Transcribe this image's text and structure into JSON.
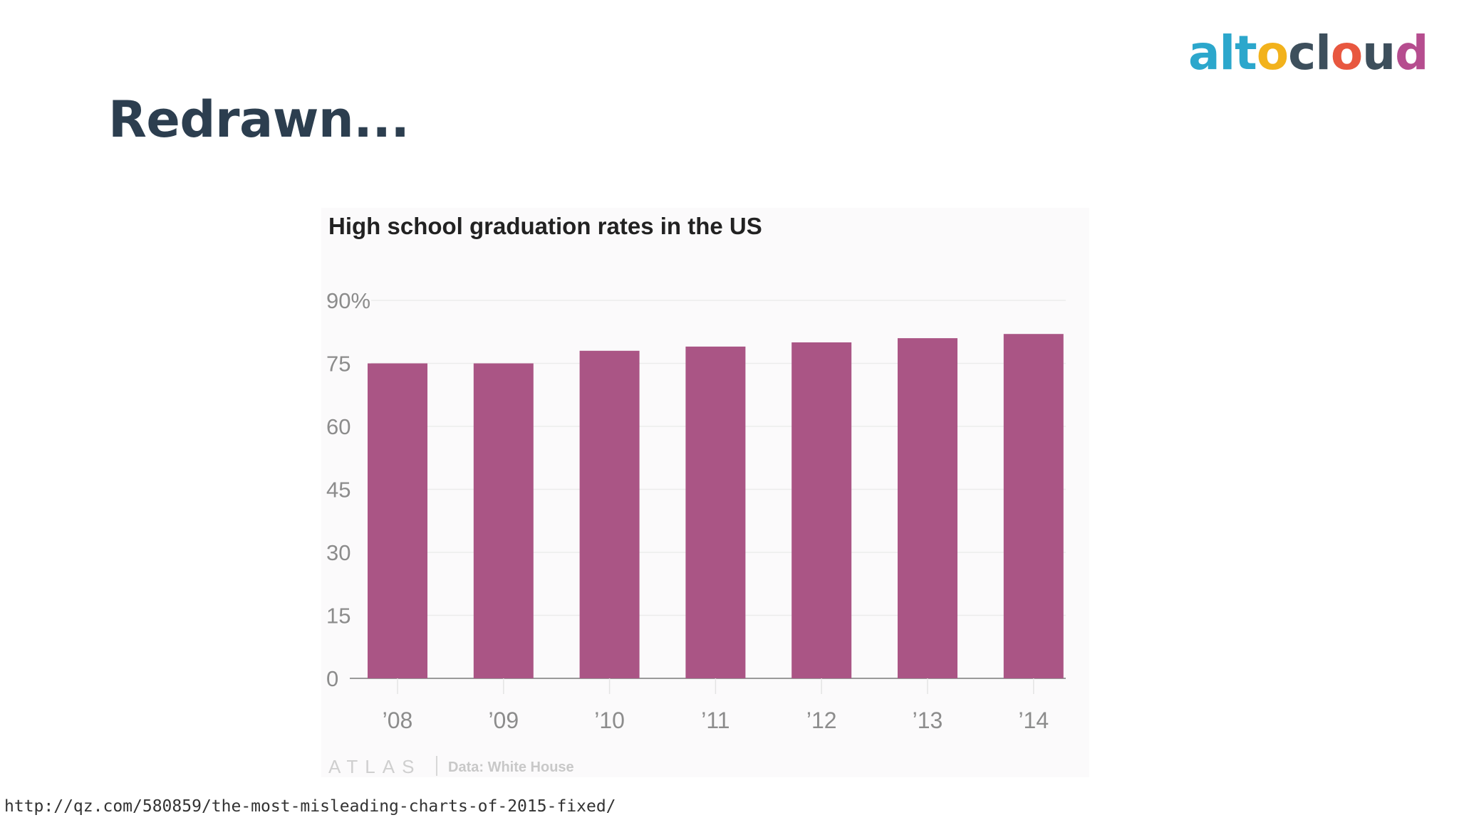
{
  "slide": {
    "title": "Redrawn...",
    "logo": {
      "letters": [
        "a",
        "l",
        "t",
        "o",
        "c",
        "l",
        "o",
        "u",
        "d"
      ],
      "colors": [
        "#2ca7cc",
        "#2ca7cc",
        "#2ca7cc",
        "#f2b21c",
        "#3d4f5c",
        "#3d4f5c",
        "#e8573f",
        "#3d4f5c",
        "#b64d8f"
      ]
    },
    "source_url": "http://qz.com/580859/the-most-misleading-charts-of-2015-fixed/"
  },
  "chart_data": {
    "type": "bar",
    "title": "High school graduation rates in the US",
    "categories": [
      "’08",
      "’09",
      "’10",
      "’11",
      "’12",
      "’13",
      "’14"
    ],
    "values": [
      75,
      75,
      78,
      79,
      80,
      81,
      82
    ],
    "y_ticks": [
      0,
      15,
      30,
      45,
      60,
      75,
      90
    ],
    "y_tick_labels": [
      "0",
      "15",
      "30",
      "45",
      "60",
      "75",
      "90%"
    ],
    "ylim": [
      0,
      90
    ],
    "xlabel": "",
    "ylabel": "",
    "grid": true,
    "bar_color": "#aa5585",
    "footer": {
      "brand": "ATLAS",
      "source": "Data: White House"
    }
  }
}
